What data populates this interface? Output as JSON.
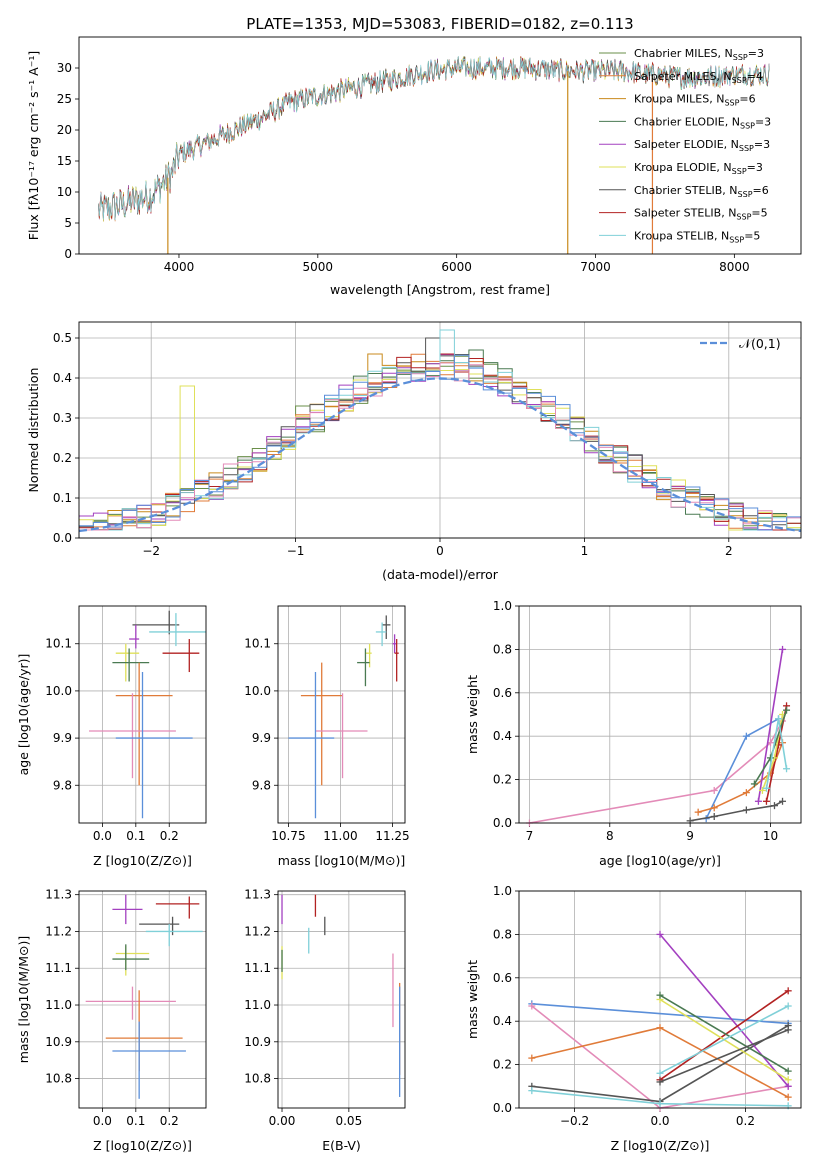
{
  "title": "PLATE=1353, MJD=53083, FIBERID=0182, z=0.113",
  "chart_data": [
    {
      "id": "spectrum",
      "type": "line",
      "xlabel": "wavelength [Angstrom, rest frame]",
      "ylabel": "Flux [f_λ10^-17 erg cm^-2 s^-1 A^-1]",
      "xlim": [
        3280,
        8480
      ],
      "ylim": [
        0,
        35
      ],
      "xticks": [
        4000,
        5000,
        6000,
        7000,
        8000
      ],
      "yticks": [
        0,
        5,
        10,
        15,
        20,
        25,
        30
      ],
      "grid": false,
      "legend_position": "top-right",
      "series": [
        {
          "name": "Chabrier MILES, N_SSP=3",
          "color": "#6a8f4a"
        },
        {
          "name": "Salpeter MILES, N_SSP=4",
          "color": "#e07b39"
        },
        {
          "name": "Kroupa MILES, N_SSP=6",
          "color": "#c98a1c"
        },
        {
          "name": "Chabrier ELODIE, N_SSP=3",
          "color": "#4a7a52"
        },
        {
          "name": "Salpeter ELODIE, N_SSP=3",
          "color": "#a340c0"
        },
        {
          "name": "Kroupa ELODIE, N_SSP=3",
          "color": "#dfe05a"
        },
        {
          "name": "Chabrier STELIB, N_SSP=6",
          "color": "#555555"
        },
        {
          "name": "Salpeter STELIB, N_SSP=5",
          "color": "#b22222"
        },
        {
          "name": "Kroupa STELIB, N_SSP=5",
          "color": "#80d0d8"
        }
      ],
      "continuum_points": [
        [
          3420,
          7
        ],
        [
          3600,
          8
        ],
        [
          3800,
          9.5
        ],
        [
          3950,
          13
        ],
        [
          4000,
          16
        ],
        [
          4200,
          18
        ],
        [
          4400,
          20
        ],
        [
          4600,
          22
        ],
        [
          4800,
          24.5
        ],
        [
          5000,
          25.5
        ],
        [
          5200,
          26.5
        ],
        [
          5400,
          27.5
        ],
        [
          5600,
          28.5
        ],
        [
          5800,
          29.5
        ],
        [
          6000,
          30
        ],
        [
          6200,
          30
        ],
        [
          6500,
          30
        ],
        [
          6800,
          29.5
        ],
        [
          7000,
          29.5
        ],
        [
          7200,
          29.5
        ],
        [
          7400,
          29
        ],
        [
          7600,
          28.5
        ],
        [
          7800,
          28.5
        ],
        [
          8000,
          29
        ],
        [
          8250,
          29
        ]
      ],
      "vertical_drops": [
        [
          3920,
          "#c98a1c"
        ],
        [
          6800,
          "#c98a1c"
        ],
        [
          7410,
          "#e07b39"
        ]
      ]
    },
    {
      "id": "residuals",
      "type": "step-histogram",
      "xlabel": "(data-model)/error",
      "ylabel": "Normed distribution",
      "xlim": [
        -2.5,
        2.5
      ],
      "ylim": [
        0,
        0.54
      ],
      "xticks": [
        -2,
        -1,
        0,
        1,
        2
      ],
      "yticks": [
        0.0,
        0.1,
        0.2,
        0.3,
        0.4,
        0.5
      ],
      "grid": true,
      "legend": {
        "label": "𝒩(0,1)",
        "position": "top-right"
      },
      "colors": [
        "#6a8f4a",
        "#e07b39",
        "#c98a1c",
        "#4a7a52",
        "#a340c0",
        "#dfe05a",
        "#555555",
        "#b22222",
        "#80d0d8",
        "#e38bb8",
        "#5b8fd9"
      ],
      "bin_width": 0.1,
      "gaussian_color": "#5b8fd9",
      "spikes": [
        [
          -0.95,
          0.33
        ],
        [
          -0.45,
          0.46
        ],
        [
          -0.05,
          0.5
        ],
        [
          0.05,
          0.52
        ],
        [
          0.25,
          0.47
        ],
        [
          -1.75,
          0.38
        ]
      ]
    },
    {
      "id": "age_vs_Z",
      "type": "errorbar",
      "xlabel": "Z [log10(Z/Z⊙)]",
      "ylabel": "age [log10(age/yr)]",
      "xlim": [
        -0.07,
        0.31
      ],
      "ylim": [
        9.72,
        10.18
      ],
      "xticks": [
        0.0,
        0.1,
        0.2
      ],
      "yticks": [
        9.8,
        9.9,
        10.0,
        10.1
      ],
      "points": [
        {
          "x": 0.2,
          "y": 10.14,
          "xerr": [
            0.11,
            0.03
          ],
          "yerr": [
            0.02,
            0.03
          ],
          "color": "#555555"
        },
        {
          "x": 0.22,
          "y": 10.125,
          "xerr": [
            0.08,
            0.09
          ],
          "yerr": [
            0.03,
            0.04
          ],
          "color": "#80d0d8"
        },
        {
          "x": 0.1,
          "y": 10.11,
          "xerr": [
            0.02,
            0.01
          ],
          "yerr": [
            0.02,
            0.03
          ],
          "color": "#a340c0"
        },
        {
          "x": 0.26,
          "y": 10.08,
          "xerr": [
            0.08,
            0.03
          ],
          "yerr": [
            0.04,
            0.03
          ],
          "color": "#b22222"
        },
        {
          "x": 0.07,
          "y": 10.08,
          "xerr": [
            0.03,
            0.04
          ],
          "yerr": [
            0.06,
            0.02
          ],
          "color": "#dfe05a"
        },
        {
          "x": 0.08,
          "y": 10.06,
          "xerr": [
            0.05,
            0.06
          ],
          "yerr": [
            0.04,
            0.03
          ],
          "color": "#4a7a52"
        },
        {
          "x": 0.11,
          "y": 9.99,
          "xerr": [
            0.07,
            0.1
          ],
          "yerr": [
            0.19,
            0.07
          ],
          "color": "#e07b39"
        },
        {
          "x": 0.09,
          "y": 9.915,
          "xerr": [
            0.13,
            0.13
          ],
          "yerr": [
            0.1,
            0.08
          ],
          "color": "#e38bb8"
        },
        {
          "x": 0.12,
          "y": 9.9,
          "xerr": [
            0.08,
            0.15
          ],
          "yerr": [
            0.17,
            0.14
          ],
          "color": "#5b8fd9"
        }
      ]
    },
    {
      "id": "age_vs_mass",
      "type": "errorbar",
      "xlabel": "mass [log10(M/M⊙)]",
      "ylabel": "",
      "xlim": [
        10.7,
        11.31
      ],
      "ylim": [
        9.72,
        10.18
      ],
      "xticks": [
        10.75,
        11.0,
        11.25
      ],
      "yticks": [
        9.8,
        9.9,
        10.0,
        10.1
      ],
      "points": [
        {
          "x": 11.22,
          "y": 10.14,
          "xerr": [
            0.02,
            0.02
          ],
          "yerr": [
            0.03,
            0.02
          ],
          "color": "#555555"
        },
        {
          "x": 11.2,
          "y": 10.125,
          "xerr": [
            0.03,
            0.02
          ],
          "yerr": [
            0.03,
            0.02
          ],
          "color": "#80d0d8"
        },
        {
          "x": 11.26,
          "y": 10.1,
          "xerr": [
            0.01,
            0.01
          ],
          "yerr": [
            0.02,
            0.02
          ],
          "color": "#a340c0"
        },
        {
          "x": 11.27,
          "y": 10.08,
          "xerr": [
            0.01,
            0.01
          ],
          "yerr": [
            0.06,
            0.03
          ],
          "color": "#b22222"
        },
        {
          "x": 11.14,
          "y": 10.08,
          "xerr": [
            0.02,
            0.01
          ],
          "yerr": [
            0.03,
            0.02
          ],
          "color": "#dfe05a"
        },
        {
          "x": 11.12,
          "y": 10.06,
          "xerr": [
            0.04,
            0.02
          ],
          "yerr": [
            0.05,
            0.03
          ],
          "color": "#4a7a52"
        },
        {
          "x": 10.91,
          "y": 9.99,
          "xerr": [
            0.1,
            0.1
          ],
          "yerr": [
            0.19,
            0.07
          ],
          "color": "#e07b39"
        },
        {
          "x": 11.01,
          "y": 9.915,
          "xerr": [
            0.13,
            0.12
          ],
          "yerr": [
            0.1,
            0.08
          ],
          "color": "#e38bb8"
        },
        {
          "x": 10.88,
          "y": 9.9,
          "xerr": [
            0.13,
            0.09
          ],
          "yerr": [
            0.17,
            0.14
          ],
          "color": "#5b8fd9"
        }
      ]
    },
    {
      "id": "weight_vs_age",
      "type": "line",
      "xlabel": "age [log10(age/yr)]",
      "ylabel": "mass weight",
      "xlim": [
        6.87,
        10.38
      ],
      "ylim": [
        0,
        1.0
      ],
      "xticks": [
        7,
        8,
        9,
        10
      ],
      "yticks": [
        0.0,
        0.2,
        0.4,
        0.6,
        0.8,
        1.0
      ],
      "grid": true,
      "series": [
        {
          "color": "#e38bb8",
          "x": [
            7.0,
            9.3,
            10.0,
            10.15
          ],
          "y": [
            0.0,
            0.15,
            0.37,
            0.47
          ]
        },
        {
          "color": "#5b8fd9",
          "x": [
            9.2,
            9.7,
            10.1
          ],
          "y": [
            0.02,
            0.4,
            0.48
          ]
        },
        {
          "color": "#e07b39",
          "x": [
            9.1,
            9.3,
            9.7,
            10.0,
            10.15
          ],
          "y": [
            0.05,
            0.07,
            0.14,
            0.23,
            0.37
          ]
        },
        {
          "color": "#555555",
          "x": [
            9.0,
            9.3,
            9.7,
            10.05,
            10.15
          ],
          "y": [
            0.01,
            0.03,
            0.06,
            0.08,
            0.1
          ]
        },
        {
          "color": "#a340c0",
          "x": [
            9.85,
            10.15
          ],
          "y": [
            0.1,
            0.8
          ]
        },
        {
          "color": "#b22222",
          "x": [
            9.95,
            10.1,
            10.2
          ],
          "y": [
            0.1,
            0.36,
            0.54
          ]
        },
        {
          "color": "#dfe05a",
          "x": [
            9.9,
            10.05,
            10.15
          ],
          "y": [
            0.15,
            0.3,
            0.5
          ]
        },
        {
          "color": "#4a7a52",
          "x": [
            9.8,
            10.0,
            10.2
          ],
          "y": [
            0.18,
            0.3,
            0.52
          ]
        },
        {
          "color": "#80d0d8",
          "x": [
            9.95,
            10.1,
            10.2
          ],
          "y": [
            0.16,
            0.48,
            0.25
          ]
        }
      ]
    },
    {
      "id": "mass_vs_Z",
      "type": "errorbar",
      "xlabel": "Z [log10(Z/Z⊙)]",
      "ylabel": "mass [log10(M/M⊙)]",
      "xlim": [
        -0.07,
        0.31
      ],
      "ylim": [
        10.72,
        11.31
      ],
      "xticks": [
        0.0,
        0.1,
        0.2
      ],
      "yticks": [
        10.8,
        10.9,
        11.0,
        11.1,
        11.2,
        11.3
      ],
      "points": [
        {
          "x": 0.26,
          "y": 11.275,
          "xerr": [
            0.1,
            0.03
          ],
          "yerr": [
            0.04,
            0.02
          ],
          "color": "#b22222"
        },
        {
          "x": 0.07,
          "y": 11.26,
          "xerr": [
            0.04,
            0.05
          ],
          "yerr": [
            0.04,
            0.04
          ],
          "color": "#a340c0"
        },
        {
          "x": 0.21,
          "y": 11.22,
          "xerr": [
            0.1,
            0.02
          ],
          "yerr": [
            0.03,
            0.02
          ],
          "color": "#555555"
        },
        {
          "x": 0.2,
          "y": 11.2,
          "xerr": [
            0.07,
            0.1
          ],
          "yerr": [
            0.04,
            0.02
          ],
          "color": "#80d0d8"
        },
        {
          "x": 0.07,
          "y": 11.14,
          "xerr": [
            0.03,
            0.07
          ],
          "yerr": [
            0.06,
            0.02
          ],
          "color": "#dfe05a"
        },
        {
          "x": 0.07,
          "y": 11.125,
          "xerr": [
            0.04,
            0.07
          ],
          "yerr": [
            0.03,
            0.04
          ],
          "color": "#4a7a52"
        },
        {
          "x": 0.09,
          "y": 11.01,
          "xerr": [
            0.14,
            0.13
          ],
          "yerr": [
            0.05,
            0.04
          ],
          "color": "#e38bb8"
        },
        {
          "x": 0.11,
          "y": 10.91,
          "xerr": [
            0.1,
            0.13
          ],
          "yerr": [
            0.09,
            0.13
          ],
          "color": "#e07b39"
        },
        {
          "x": 0.11,
          "y": 10.875,
          "xerr": [
            0.08,
            0.14
          ],
          "yerr": [
            0.13,
            0.08
          ],
          "color": "#5b8fd9"
        }
      ]
    },
    {
      "id": "mass_vs_ebv",
      "type": "errorbar",
      "xlabel": "E(B-V)",
      "ylabel": "",
      "xlim": [
        -0.003,
        0.092
      ],
      "ylim": [
        10.72,
        11.31
      ],
      "xticks": [
        0.0,
        0.05
      ],
      "yticks": [
        10.8,
        10.9,
        11.0,
        11.1,
        11.2,
        11.3
      ],
      "points": [
        {
          "x": 0.0,
          "y": 11.26,
          "xerr": [
            0,
            0
          ],
          "yerr": [
            0.04,
            0.04
          ],
          "color": "#a340c0"
        },
        {
          "x": 0.025,
          "y": 11.27,
          "xerr": [
            0,
            0
          ],
          "yerr": [
            0.03,
            0.03
          ],
          "color": "#b22222"
        },
        {
          "x": 0.032,
          "y": 11.22,
          "xerr": [
            0,
            0
          ],
          "yerr": [
            0.03,
            0.02
          ],
          "color": "#555555"
        },
        {
          "x": 0.02,
          "y": 11.18,
          "xerr": [
            0,
            0
          ],
          "yerr": [
            0.04,
            0.03
          ],
          "color": "#80d0d8"
        },
        {
          "x": 0.0,
          "y": 11.12,
          "xerr": [
            0,
            0
          ],
          "yerr": [
            0.05,
            0.04
          ],
          "color": "#dfe05a"
        },
        {
          "x": 0.0,
          "y": 11.12,
          "xerr": [
            0,
            0
          ],
          "yerr": [
            0.03,
            0.03
          ],
          "color": "#4a7a52"
        },
        {
          "x": 0.083,
          "y": 11.04,
          "xerr": [
            0,
            0
          ],
          "yerr": [
            0.1,
            0.1
          ],
          "color": "#e38bb8"
        },
        {
          "x": 0.088,
          "y": 10.93,
          "xerr": [
            0,
            0
          ],
          "yerr": [
            0.12,
            0.13
          ],
          "color": "#e07b39"
        },
        {
          "x": 0.088,
          "y": 10.88,
          "xerr": [
            0,
            0
          ],
          "yerr": [
            0.13,
            0.17
          ],
          "color": "#5b8fd9"
        }
      ]
    },
    {
      "id": "weight_vs_Z",
      "type": "line",
      "xlabel": "Z [log10(Z/Z⊙)]",
      "ylabel": "mass weight",
      "xlim": [
        -0.33,
        0.33
      ],
      "ylim": [
        0,
        1.0
      ],
      "xticks": [
        -0.2,
        0.0,
        0.2
      ],
      "yticks": [
        0.0,
        0.2,
        0.4,
        0.6,
        0.8,
        1.0
      ],
      "grid": true,
      "series": [
        {
          "color": "#5b8fd9",
          "x": [
            -0.3,
            0.3
          ],
          "y": [
            0.48,
            0.39
          ]
        },
        {
          "color": "#e38bb8",
          "x": [
            -0.3,
            0.0,
            0.3
          ],
          "y": [
            0.47,
            0.0,
            0.1
          ]
        },
        {
          "color": "#e07b39",
          "x": [
            -0.3,
            0.0,
            0.3
          ],
          "y": [
            0.23,
            0.37,
            0.05
          ]
        },
        {
          "color": "#555555",
          "x": [
            -0.3,
            0.0,
            0.3
          ],
          "y": [
            0.1,
            0.03,
            0.38
          ]
        },
        {
          "color": "#80d0d8",
          "x": [
            -0.3,
            0.0,
            0.3
          ],
          "y": [
            0.08,
            0.02,
            0.01
          ]
        },
        {
          "color": "#a340c0",
          "x": [
            0.0,
            0.3
          ],
          "y": [
            0.8,
            0.1
          ]
        },
        {
          "color": "#b22222",
          "x": [
            0.0,
            0.3
          ],
          "y": [
            0.13,
            0.54
          ]
        },
        {
          "color": "#dfe05a",
          "x": [
            0.0,
            0.3
          ],
          "y": [
            0.5,
            0.13
          ]
        },
        {
          "color": "#4a7a52",
          "x": [
            0.0,
            0.3
          ],
          "y": [
            0.52,
            0.17
          ]
        },
        {
          "color": "#80d0d8",
          "x": [
            0.0,
            0.3
          ],
          "y": [
            0.16,
            0.47
          ]
        },
        {
          "color": "#555555",
          "x": [
            0.0,
            0.3
          ],
          "y": [
            0.12,
            0.36
          ]
        }
      ]
    }
  ]
}
